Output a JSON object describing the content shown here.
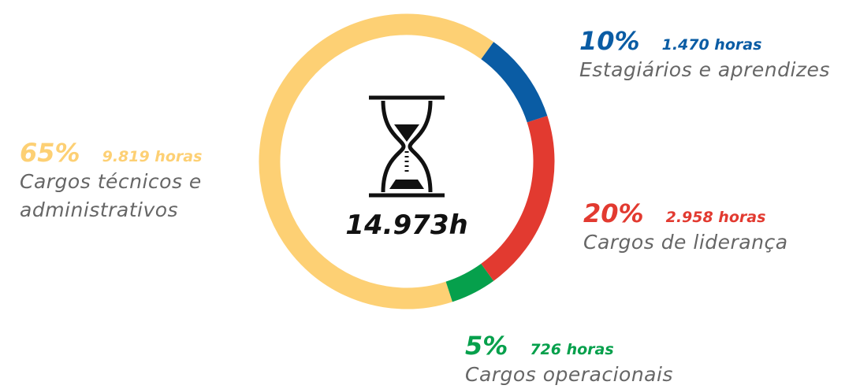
{
  "chart_data": {
    "type": "pie",
    "categories": [
      "Estagiários e aprendizes",
      "Cargos de liderança",
      "Cargos operacionais",
      "Cargos técnicos e administrativos"
    ],
    "values": [
      10,
      20,
      5,
      65
    ],
    "value_labels": [
      "10%",
      "20%",
      "5%",
      "65%"
    ],
    "hour_labels": [
      "1.470 horas",
      "2.958 horas",
      "726 horas",
      "9.819 horas"
    ],
    "colors": [
      "#0a5ca4",
      "#e23a30",
      "#06a04c",
      "#fdd074"
    ],
    "center_label": "14.973h"
  }
}
